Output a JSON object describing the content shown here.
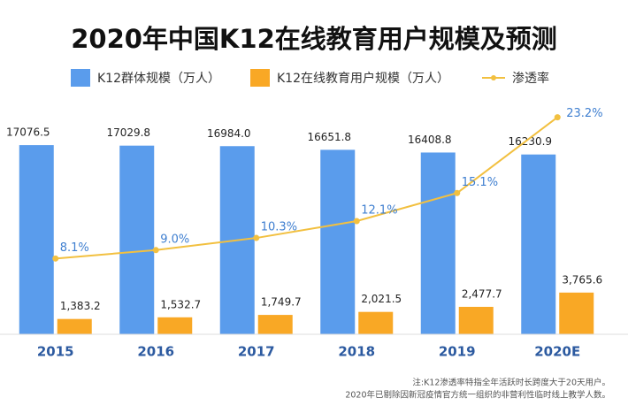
{
  "chart_data": {
    "type": "bar_line",
    "title": "2020年中国K12在线教育用户规模及预测",
    "categories": [
      "2015",
      "2016",
      "2017",
      "2018",
      "2019",
      "2020E"
    ],
    "series": [
      {
        "name": "K12群体规模（万人）",
        "type": "bar",
        "color": "#5a9cec",
        "values": [
          17076.5,
          17029.8,
          16984.0,
          16651.8,
          16408.8,
          16230.9
        ],
        "value_labels": [
          "17076.5",
          "17029.8",
          "16984.0",
          "16651.8",
          "16408.8",
          "16230.9"
        ]
      },
      {
        "name": "K12在线教育用户规模（万人）",
        "type": "bar",
        "color": "#f9a825",
        "values": [
          1383.2,
          1532.7,
          1749.7,
          2021.5,
          2477.7,
          3765.6
        ],
        "value_labels": [
          "1,383.2",
          "1,532.7",
          "1,749.7",
          "2,021.5",
          "2,477.7",
          "3,765.6"
        ]
      },
      {
        "name": "渗透率",
        "type": "line",
        "axis": "y2",
        "color": "#f2c040",
        "values": [
          8.1,
          9.0,
          10.3,
          12.1,
          15.1,
          23.2
        ],
        "value_labels": [
          "8.1%",
          "9.0%",
          "10.3%",
          "12.1%",
          "15.1%",
          "23.2%"
        ]
      }
    ],
    "ylim": [
      0,
      19000
    ],
    "y2lim": [
      0,
      22.5
    ],
    "notes": [
      "注:K12渗透率特指全年活跃时长跨度大于20天用户。",
      "2020年已剔除因新冠疫情官方统一组织的非营利性临时线上教学人数。"
    ]
  }
}
